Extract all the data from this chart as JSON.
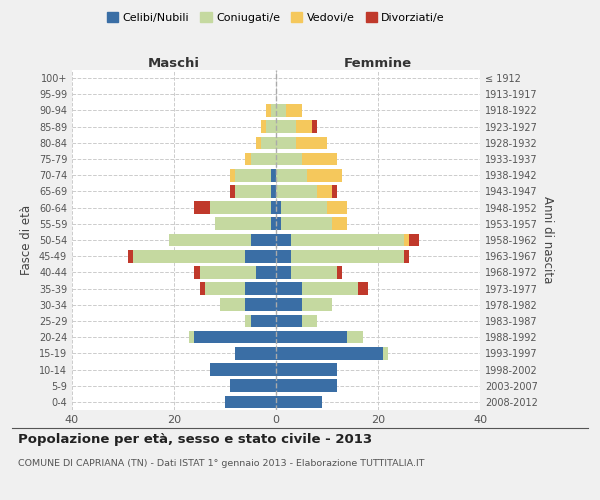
{
  "age_groups": [
    "0-4",
    "5-9",
    "10-14",
    "15-19",
    "20-24",
    "25-29",
    "30-34",
    "35-39",
    "40-44",
    "45-49",
    "50-54",
    "55-59",
    "60-64",
    "65-69",
    "70-74",
    "75-79",
    "80-84",
    "85-89",
    "90-94",
    "95-99",
    "100+"
  ],
  "birth_years": [
    "2008-2012",
    "2003-2007",
    "1998-2002",
    "1993-1997",
    "1988-1992",
    "1983-1987",
    "1978-1982",
    "1973-1977",
    "1968-1972",
    "1963-1967",
    "1958-1962",
    "1953-1957",
    "1948-1952",
    "1943-1947",
    "1938-1942",
    "1933-1937",
    "1928-1932",
    "1923-1927",
    "1918-1922",
    "1913-1917",
    "≤ 1912"
  ],
  "colors": {
    "celibi": "#3a6ea5",
    "coniugati": "#c5d9a0",
    "vedovi": "#f5c85c",
    "divorziati": "#c0392b"
  },
  "maschi": {
    "celibi": [
      10,
      9,
      13,
      8,
      16,
      5,
      6,
      6,
      4,
      6,
      5,
      1,
      1,
      1,
      1,
      0,
      0,
      0,
      0,
      0,
      0
    ],
    "coniugati": [
      0,
      0,
      0,
      0,
      1,
      1,
      5,
      8,
      11,
      22,
      16,
      11,
      12,
      7,
      7,
      5,
      3,
      2,
      1,
      0,
      0
    ],
    "vedovi": [
      0,
      0,
      0,
      0,
      0,
      0,
      0,
      0,
      0,
      0,
      0,
      0,
      0,
      0,
      1,
      1,
      1,
      1,
      1,
      0,
      0
    ],
    "divorziati": [
      0,
      0,
      0,
      0,
      0,
      0,
      0,
      1,
      1,
      1,
      0,
      0,
      3,
      1,
      0,
      0,
      0,
      0,
      0,
      0,
      0
    ]
  },
  "femmine": {
    "celibi": [
      9,
      12,
      12,
      21,
      14,
      5,
      5,
      5,
      3,
      3,
      3,
      1,
      1,
      0,
      0,
      0,
      0,
      0,
      0,
      0,
      0
    ],
    "coniugati": [
      0,
      0,
      0,
      1,
      3,
      3,
      6,
      11,
      9,
      22,
      22,
      10,
      9,
      8,
      6,
      5,
      4,
      4,
      2,
      0,
      0
    ],
    "vedovi": [
      0,
      0,
      0,
      0,
      0,
      0,
      0,
      0,
      0,
      0,
      1,
      3,
      4,
      3,
      7,
      7,
      6,
      3,
      3,
      0,
      0
    ],
    "divorziati": [
      0,
      0,
      0,
      0,
      0,
      0,
      0,
      2,
      1,
      1,
      2,
      0,
      0,
      1,
      0,
      0,
      0,
      1,
      0,
      0,
      0
    ]
  },
  "title": "Popolazione per età, sesso e stato civile - 2013",
  "subtitle": "COMUNE DI CAPRIANA (TN) - Dati ISTAT 1° gennaio 2013 - Elaborazione TUTTITALIA.IT",
  "xlabel_left": "Maschi",
  "xlabel_right": "Femmine",
  "ylabel": "Fasce di età",
  "ylabel_right": "Anni di nascita",
  "xlim": 40,
  "legend_labels": [
    "Celibi/Nubili",
    "Coniugati/e",
    "Vedovi/e",
    "Divorziati/e"
  ],
  "bg_color": "#f0f0f0",
  "plot_bg": "#ffffff"
}
